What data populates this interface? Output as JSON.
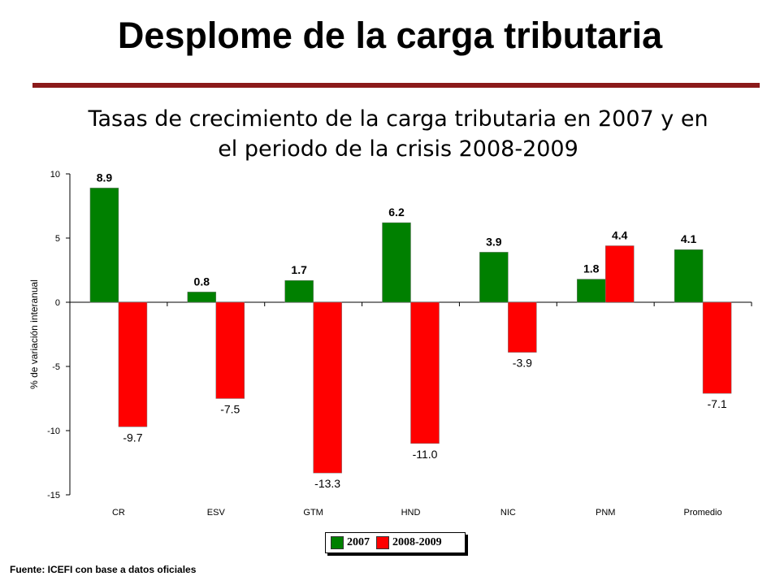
{
  "slide": {
    "title": "Desplome de la carga tributaria",
    "chart_title_line1": "Tasas de crecimiento de la carga tributaria en 2007  y en",
    "chart_title_line2": "el periodo de la crisis 2008-2009",
    "source": "Fuente: ICEFI con base a datos oficiales"
  },
  "colors": {
    "rule": "#8b1a1a",
    "series_2007": "#008000",
    "series_2008_2009": "#ff0000"
  },
  "chart_data": {
    "type": "bar",
    "title": "Tasas de crecimiento de la carga tributaria en 2007  y en el periodo de la crisis 2008-2009",
    "ylabel": "% de variación interanual",
    "xlabel": "",
    "ylim": [
      -15,
      10
    ],
    "yticks": [
      10,
      5,
      0,
      -5,
      -10,
      -15
    ],
    "grid": false,
    "legend_position": "bottom",
    "categories": [
      "CR",
      "ESV",
      "GTM",
      "HND",
      "NIC",
      "PNM",
      "Promedio"
    ],
    "series": [
      {
        "name": "2007",
        "values": [
          8.9,
          0.8,
          1.7,
          6.2,
          3.9,
          1.8,
          4.1
        ]
      },
      {
        "name": "2008-2009",
        "values": [
          -9.7,
          -7.5,
          -13.3,
          -11.0,
          -3.9,
          4.4,
          -7.1
        ]
      }
    ]
  }
}
